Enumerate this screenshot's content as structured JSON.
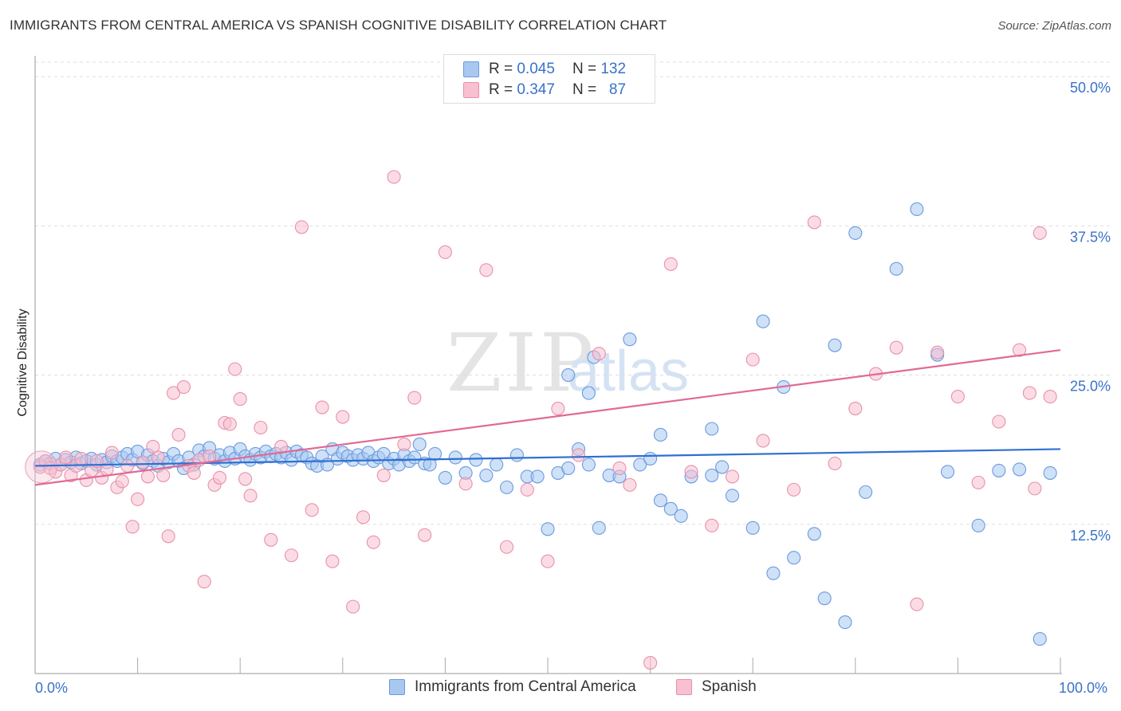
{
  "title": "IMMIGRANTS FROM CENTRAL AMERICA VS SPANISH COGNITIVE DISABILITY CORRELATION CHART",
  "source": "Source: ZipAtlas.com",
  "watermark": {
    "zip": "ZIP",
    "atlas": "atlas"
  },
  "legend": {
    "r_label": "R =",
    "n_label": "N =",
    "rows": [
      {
        "r": "0.045",
        "n": "132",
        "fill": "#a8c8f0",
        "stroke": "#6a9ae0"
      },
      {
        "r": "0.347",
        "n": "87",
        "fill": "#f8c0d0",
        "stroke": "#e890aa"
      }
    ]
  },
  "chart_data": {
    "type": "scatter",
    "xlabel": "",
    "ylabel": "Cognitive Disability",
    "x_tick_labels": [
      "0.0%",
      "100.0%"
    ],
    "y_tick_labels": [
      "12.5%",
      "25.0%",
      "37.5%",
      "50.0%"
    ],
    "y_ticks": [
      12.5,
      25.0,
      37.5,
      50.0
    ],
    "xlim": [
      0,
      100
    ],
    "ylim": [
      0,
      50
    ],
    "grid": true,
    "series": [
      {
        "name": "Immigrants from Central America",
        "color": "#6a9ae0",
        "fill": "#a8c8f0",
        "line_color": "#2f6fd0",
        "trend": {
          "x": [
            0,
            100
          ],
          "y": [
            17.4,
            18.8
          ]
        },
        "points": [
          [
            0.5,
            17.5
          ],
          [
            1,
            17.8
          ],
          [
            1.5,
            17.6
          ],
          [
            2,
            18
          ],
          [
            2.5,
            17.5
          ],
          [
            3,
            17.9
          ],
          [
            3.5,
            17.7
          ],
          [
            4,
            18.1
          ],
          [
            4.5,
            17.6
          ],
          [
            5,
            17.8
          ],
          [
            5.5,
            18
          ],
          [
            6,
            17.5
          ],
          [
            6.5,
            17.9
          ],
          [
            7,
            17.7
          ],
          [
            7.5,
            18.2
          ],
          [
            8,
            17.8
          ],
          [
            8.5,
            18.1
          ],
          [
            9,
            18.4
          ],
          [
            9.5,
            17.9
          ],
          [
            10,
            18.6
          ],
          [
            10.5,
            17.6
          ],
          [
            11,
            18.3
          ],
          [
            11.5,
            17.8
          ],
          [
            12,
            17.4
          ],
          [
            12.5,
            18
          ],
          [
            13,
            17.7
          ],
          [
            13.5,
            18.4
          ],
          [
            14,
            17.8
          ],
          [
            14.5,
            17.2
          ],
          [
            15,
            18.1
          ],
          [
            15.5,
            17.5
          ],
          [
            16,
            18.7
          ],
          [
            16.5,
            18.2
          ],
          [
            17,
            18.9
          ],
          [
            17.5,
            18
          ],
          [
            18,
            18.3
          ],
          [
            18.5,
            17.8
          ],
          [
            19,
            18.5
          ],
          [
            19.5,
            18
          ],
          [
            20,
            18.8
          ],
          [
            20.5,
            18.2
          ],
          [
            21,
            17.9
          ],
          [
            21.5,
            18.4
          ],
          [
            22,
            18.1
          ],
          [
            22.5,
            18.6
          ],
          [
            23,
            18.2
          ],
          [
            23.5,
            18.4
          ],
          [
            24,
            18.1
          ],
          [
            24.5,
            18.5
          ],
          [
            25,
            17.9
          ],
          [
            25.5,
            18.6
          ],
          [
            26,
            18.3
          ],
          [
            26.5,
            18.1
          ],
          [
            27,
            17.6
          ],
          [
            27.5,
            17.4
          ],
          [
            28,
            18.2
          ],
          [
            28.5,
            17.5
          ],
          [
            29,
            18.8
          ],
          [
            29.5,
            18
          ],
          [
            30,
            18.5
          ],
          [
            30.5,
            18.2
          ],
          [
            31,
            17.9
          ],
          [
            31.5,
            18.3
          ],
          [
            32,
            18
          ],
          [
            32.5,
            18.5
          ],
          [
            33,
            17.8
          ],
          [
            33.5,
            18.1
          ],
          [
            34,
            18.4
          ],
          [
            34.5,
            17.6
          ],
          [
            35,
            18
          ],
          [
            35.5,
            17.5
          ],
          [
            36,
            18.3
          ],
          [
            36.5,
            17.8
          ],
          [
            37,
            18.1
          ],
          [
            37.5,
            19.2
          ],
          [
            38,
            17.6
          ],
          [
            38.5,
            17.5
          ],
          [
            39,
            18.4
          ],
          [
            40,
            16.4
          ],
          [
            41,
            18.1
          ],
          [
            42,
            16.8
          ],
          [
            43,
            17.9
          ],
          [
            44,
            16.6
          ],
          [
            45,
            17.5
          ],
          [
            46,
            15.6
          ],
          [
            47,
            18.3
          ],
          [
            48,
            16.5
          ],
          [
            49,
            16.5
          ],
          [
            50,
            12.1
          ],
          [
            51,
            16.8
          ],
          [
            52,
            17.2
          ],
          [
            53,
            18.8
          ],
          [
            54,
            17.5
          ],
          [
            54.5,
            26.5
          ],
          [
            55,
            12.2
          ],
          [
            56,
            16.6
          ],
          [
            57,
            16.5
          ],
          [
            59,
            17.5
          ],
          [
            60,
            18
          ],
          [
            61,
            14.5
          ],
          [
            62,
            13.8
          ],
          [
            63,
            13.2
          ],
          [
            64,
            16.5
          ],
          [
            66,
            16.6
          ],
          [
            67,
            17.3
          ],
          [
            68,
            14.9
          ],
          [
            70,
            12.2
          ],
          [
            71,
            29.5
          ],
          [
            72,
            8.4
          ],
          [
            73,
            24
          ],
          [
            74,
            9.7
          ],
          [
            76,
            11.7
          ],
          [
            77,
            6.3
          ],
          [
            78,
            27.5
          ],
          [
            79,
            4.3
          ],
          [
            80,
            36.9
          ],
          [
            81,
            15.2
          ],
          [
            84,
            33.9
          ],
          [
            86,
            38.9
          ],
          [
            88,
            26.7
          ],
          [
            89,
            16.9
          ],
          [
            92,
            12.4
          ],
          [
            94,
            17
          ],
          [
            96,
            17.1
          ],
          [
            98,
            2.9
          ],
          [
            99,
            16.8
          ],
          [
            58,
            28
          ],
          [
            61,
            20
          ],
          [
            52,
            25
          ],
          [
            54,
            23.5
          ],
          [
            66,
            20.5
          ]
        ]
      },
      {
        "name": "Spanish",
        "color": "#e890aa",
        "fill": "#f8c0d0",
        "line_color": "#e06a94",
        "trend": {
          "x": [
            0,
            100
          ],
          "y": [
            15.8,
            27.1
          ]
        },
        "points": [
          [
            0.5,
            17.3
          ],
          [
            1,
            17.8
          ],
          [
            1.5,
            17.2
          ],
          [
            2,
            16.9
          ],
          [
            2.5,
            17.5
          ],
          [
            3,
            18.1
          ],
          [
            3.5,
            16.6
          ],
          [
            4,
            17.4
          ],
          [
            4.5,
            18
          ],
          [
            5,
            16.2
          ],
          [
            5.5,
            17
          ],
          [
            6,
            17.8
          ],
          [
            6.5,
            16.4
          ],
          [
            7,
            17.1
          ],
          [
            7.5,
            18.5
          ],
          [
            8,
            15.6
          ],
          [
            8.5,
            16.1
          ],
          [
            9,
            17.4
          ],
          [
            9.5,
            12.3
          ],
          [
            10,
            14.6
          ],
          [
            10.5,
            17.7
          ],
          [
            11,
            16.5
          ],
          [
            11.5,
            19
          ],
          [
            12,
            18.1
          ],
          [
            12.5,
            16.6
          ],
          [
            13,
            11.5
          ],
          [
            13.5,
            23.5
          ],
          [
            14,
            20
          ],
          [
            14.5,
            24
          ],
          [
            15,
            17.4
          ],
          [
            15.5,
            16.8
          ],
          [
            16,
            17.9
          ],
          [
            16.5,
            7.7
          ],
          [
            17,
            18.2
          ],
          [
            17.5,
            15.8
          ],
          [
            18,
            16.4
          ],
          [
            18.5,
            21
          ],
          [
            19,
            20.9
          ],
          [
            19.5,
            25.5
          ],
          [
            20,
            23
          ],
          [
            20.5,
            16.3
          ],
          [
            21,
            14.9
          ],
          [
            22,
            20.6
          ],
          [
            23,
            11.2
          ],
          [
            24,
            19
          ],
          [
            25,
            9.9
          ],
          [
            26,
            37.4
          ],
          [
            27,
            13.7
          ],
          [
            28,
            22.3
          ],
          [
            29,
            9.4
          ],
          [
            30,
            21.5
          ],
          [
            31,
            5.6
          ],
          [
            32,
            13.1
          ],
          [
            33,
            11
          ],
          [
            34,
            16.6
          ],
          [
            35,
            41.6
          ],
          [
            36,
            19.2
          ],
          [
            37,
            23.1
          ],
          [
            38,
            11.6
          ],
          [
            40,
            35.3
          ],
          [
            42,
            15.9
          ],
          [
            44,
            33.8
          ],
          [
            46,
            10.6
          ],
          [
            48,
            15.4
          ],
          [
            50,
            9.4
          ],
          [
            51,
            22.2
          ],
          [
            53,
            18.3
          ],
          [
            55,
            26.8
          ],
          [
            57,
            17.2
          ],
          [
            58,
            15.8
          ],
          [
            60,
            0.9
          ],
          [
            62,
            34.3
          ],
          [
            64,
            16.9
          ],
          [
            66,
            12.4
          ],
          [
            68,
            16.5
          ],
          [
            70,
            26.3
          ],
          [
            71,
            19.5
          ],
          [
            74,
            15.4
          ],
          [
            76,
            37.8
          ],
          [
            78,
            17.6
          ],
          [
            80,
            22.2
          ],
          [
            82,
            25.1
          ],
          [
            84,
            27.3
          ],
          [
            86,
            5.8
          ],
          [
            88,
            26.9
          ],
          [
            90,
            23.2
          ],
          [
            92,
            16
          ],
          [
            94,
            21.1
          ],
          [
            96,
            27.1
          ],
          [
            97,
            23.5
          ],
          [
            98,
            36.9
          ],
          [
            99,
            23.2
          ],
          [
            97.5,
            15.5
          ]
        ]
      }
    ]
  },
  "bottom_legend": [
    {
      "label": "Immigrants from Central America",
      "fill": "#a8c8f0",
      "stroke": "#6a9ae0"
    },
    {
      "label": "Spanish",
      "fill": "#f8c0d0",
      "stroke": "#e890aa"
    }
  ]
}
